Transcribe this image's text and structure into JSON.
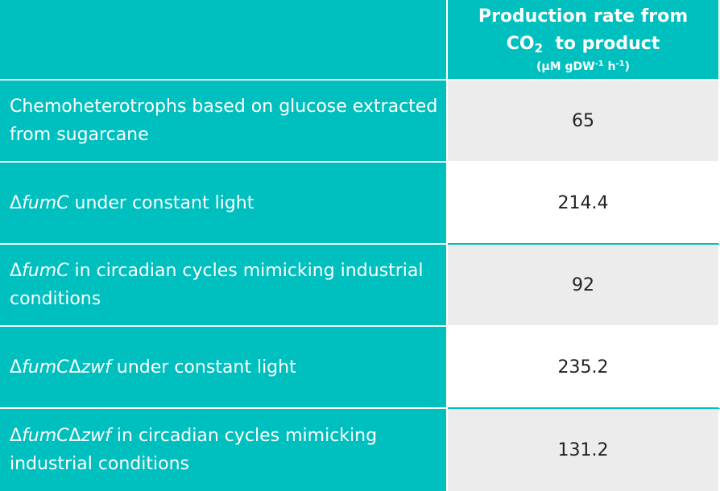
{
  "header": {
    "line1": "Production rate from",
    "line2_prefix": "CO",
    "line2_sub": "2",
    "line2_suffix": "  to product",
    "units_prefix": "(µM gDW",
    "units_sup1": "-1",
    "units_mid": " h",
    "units_sup2": "-1",
    "units_suffix": ")"
  },
  "rows": [
    {
      "label_parts": [
        "Chemoheterotrophs based on glucose extracted from sugarcane"
      ],
      "value": "65"
    },
    {
      "label_delta": "Δ",
      "label_italic": "fumC",
      "label_rest": " under constant light",
      "value": "214.4"
    },
    {
      "label_delta": "Δ",
      "label_italic": "fumC",
      "label_rest": " in circadian cycles mimicking industrial conditions",
      "value": "92"
    },
    {
      "label_delta": "Δ",
      "label_italic": "fumC",
      "label_delta2": "Δ",
      "label_italic2": "zwf",
      "label_rest": " under constant light",
      "value": "235.2"
    },
    {
      "label_delta": "Δ",
      "label_italic": "fumC",
      "label_delta2": "Δ",
      "label_italic2": "zwf",
      "label_rest": " in circadian cycles mimicking industrial conditions",
      "value": "131.2"
    }
  ],
  "colors": {
    "teal": "#00bfbf",
    "shade": "#ececec",
    "white": "#ffffff"
  }
}
